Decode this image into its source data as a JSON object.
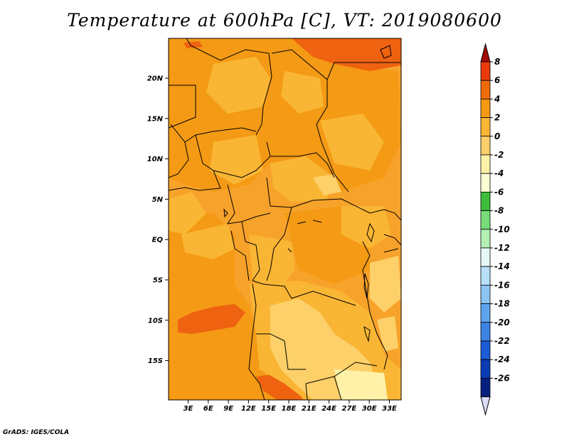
{
  "title": "Temperature at 600hPa [C], VT: 2019080600",
  "credit": "GrADS: IGES/COLA",
  "map": {
    "lat_ticks": [
      "20N",
      "15N",
      "10N",
      "5N",
      "EQ",
      "5S",
      "10S",
      "15S"
    ],
    "lon_ticks": [
      "3E",
      "6E",
      "9E",
      "12E",
      "15E",
      "18E",
      "21E",
      "24E",
      "27E",
      "30E",
      "33E"
    ]
  },
  "colorbar": {
    "levels": [
      "8",
      "6",
      "4",
      "2",
      "0",
      "-2",
      "-4",
      "-6",
      "-8",
      "-10",
      "-12",
      "-14",
      "-16",
      "-18",
      "-20",
      "-22",
      "-24",
      "-26"
    ],
    "colors": [
      "#a50a0a",
      "#e83a0a",
      "#f06a0a",
      "#f79a12",
      "#f9b634",
      "#fdd06a",
      "#fff2a8",
      "#fcfcd2",
      "#3cbe3c",
      "#78dc78",
      "#b4f0b4",
      "#e6f8f8",
      "#b8e0f8",
      "#8cc4f4",
      "#5ea4ec",
      "#3c84e4",
      "#1c5cd4",
      "#0c3cb4",
      "#062080",
      "#dcdcf8"
    ]
  }
}
